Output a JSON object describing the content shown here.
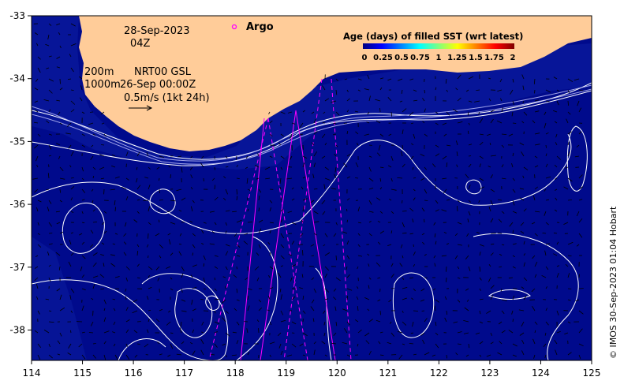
{
  "annotations": {
    "date": "28-Sep-2023",
    "time": "04Z",
    "depth_200": "200m",
    "depth_1000": "1000m",
    "product": "NRT00 GSL",
    "product_time": "26-Sep 00:00Z",
    "scale": "0.5m/s (1kt 24h)",
    "argo": "Argo"
  },
  "colorbar": {
    "title": "Age (days) of filled SST (wrt latest)",
    "ticks": [
      "0",
      "0.25",
      "0.5",
      "0.75",
      "1",
      "1.25",
      "1.5",
      "1.75",
      "2"
    ],
    "colors": [
      "#00007f",
      "#0000ff",
      "#007fff",
      "#00ffff",
      "#7fff7f",
      "#ffff00",
      "#ff7f00",
      "#ff0000",
      "#7f0000"
    ]
  },
  "axes": {
    "x_ticks": [
      "114",
      "115",
      "116",
      "117",
      "118",
      "119",
      "120",
      "121",
      "122",
      "123",
      "124",
      "125"
    ],
    "y_ticks": [
      "-33",
      "-34",
      "-35",
      "-36",
      "-37",
      "-38"
    ]
  },
  "credit": "© IMOS 30-Sep-2023 01:04 Hobart",
  "colors": {
    "ocean": "#000a8c",
    "land": "#ffcc99",
    "contour": "#ffffff",
    "track": "#ff00ff"
  }
}
